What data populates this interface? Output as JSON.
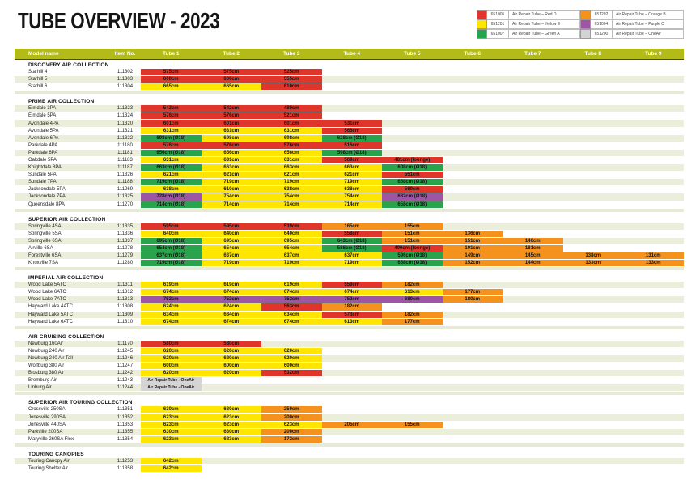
{
  "title": "TUBE OVERVIEW - 2023",
  "colors": {
    "R": "#e0352a",
    "Y": "#ffe600",
    "G": "#2aa44c",
    "O": "#f5921e",
    "P": "#9e55a4",
    "N": "#d4d4d4",
    "header": "#b3bb1a",
    "row_beige": "#ebeeda"
  },
  "legend": {
    "items": [
      {
        "code": "651005",
        "label": "Air Repair Tube – Red D",
        "color_key": "R"
      },
      {
        "code": "651201",
        "label": "Air Repair Tube – Yellow E",
        "color_key": "Y"
      },
      {
        "code": "651007",
        "label": "Air Repair Tube – Green A",
        "color_key": "G"
      },
      {
        "code": "651202",
        "label": "Air Repair Tube – Orange B",
        "color_key": "O"
      },
      {
        "code": "651004",
        "label": "Air Repair Tube – Purple C",
        "color_key": "P"
      },
      {
        "code": "651200",
        "label": "Air Repair Tube – OneAir",
        "color_key": "N"
      }
    ]
  },
  "table": {
    "columns": [
      "Model name",
      "Item No.",
      "Tube 1",
      "Tube 2",
      "Tube 3",
      "Tube 4",
      "Tube 5",
      "Tube 6",
      "Tube 7",
      "Tube 8",
      "Tube 9"
    ],
    "sections": [
      {
        "name": "DISCOVERY AIR COLLECTION",
        "first_stripe": "white",
        "rows": [
          {
            "model": "Starhill 4",
            "item": "111302",
            "tubes": [
              "575cm|R",
              "575cm|R",
              "525cm|R",
              "",
              "",
              "",
              "",
              "",
              ""
            ]
          },
          {
            "model": "Starhill 5",
            "item": "111303",
            "tubes": [
              "600cm|R",
              "600cm|R",
              "555cm|R",
              "",
              "",
              "",
              "",
              "",
              ""
            ]
          },
          {
            "model": "Starhill 6",
            "item": "111304",
            "tubes": [
              "665cm|Y",
              "665cm|Y",
              "610cm|R",
              "",
              "",
              "",
              "",
              "",
              ""
            ]
          }
        ]
      },
      {
        "name": "PRIME AIR COLLECTION",
        "first_stripe": "beige",
        "rows": [
          {
            "model": "Elmdale 3PA",
            "item": "111323",
            "tubes": [
              "542cm|R",
              "542cm|R",
              "489cm|R",
              "",
              "",
              "",
              "",
              "",
              ""
            ]
          },
          {
            "model": "Elmdale 5PA",
            "item": "111324",
            "tubes": [
              "576cm|R",
              "576cm|R",
              "521cm|R",
              "",
              "",
              "",
              "",
              "",
              ""
            ]
          },
          {
            "model": "Avondale 4PA",
            "item": "111320",
            "tubes": [
              "601cm|R",
              "601cm|R",
              "601cm|R",
              "531cm|R",
              "",
              "",
              "",
              "",
              ""
            ]
          },
          {
            "model": "Avondale 5PA",
            "item": "111321",
            "tubes": [
              "631cm|Y",
              "631cm|Y",
              "631cm|Y",
              "568cm|R",
              "",
              "",
              "",
              "",
              ""
            ]
          },
          {
            "model": "Avondale 6PA",
            "item": "111322",
            "tubes": [
              "698cm (Ø18)|G",
              "698cm|Y",
              "698cm|Y",
              "628cm (Ø18)|G",
              "",
              "",
              "",
              "",
              ""
            ]
          },
          {
            "model": "Parkdale 4PA",
            "item": "111180",
            "tubes": [
              "576cm|R",
              "576cm|R",
              "576cm|R",
              "516cm|R",
              "",
              "",
              "",
              "",
              ""
            ]
          },
          {
            "model": "Parkdale 6PA",
            "item": "111181",
            "tubes": [
              "656cm (Ø18)|G",
              "656cm|Y",
              "656cm|Y",
              "598cm (Ø18)|G",
              "",
              "",
              "",
              "",
              ""
            ]
          },
          {
            "model": "Oakdale 5PA",
            "item": "111183",
            "tubes": [
              "631cm|Y",
              "631cm|Y",
              "631cm|Y",
              "569cm|R",
              "481cm (lounge)|R",
              "",
              "",
              "",
              ""
            ]
          },
          {
            "model": "Knightdale 8PA",
            "item": "111187",
            "tubes": [
              "663cm (Ø18)|G",
              "663cm|Y",
              "663cm|Y",
              "663cm|Y",
              "608cm (Ø18)|G",
              "",
              "",
              "",
              ""
            ]
          },
          {
            "model": "Sundale 5PA",
            "item": "111326",
            "tubes": [
              "621cm|Y",
              "621cm|Y",
              "621cm|Y",
              "621cm|Y",
              "551cm|R",
              "",
              "",
              "",
              ""
            ]
          },
          {
            "model": "Sundale 7PA",
            "item": "111188",
            "tubes": [
              "719cm (Ø18)|G",
              "719cm|Y",
              "719cm|Y",
              "719cm|Y",
              "668cm (Ø18)|G",
              "",
              "",
              "",
              ""
            ]
          },
          {
            "model": "Jacksondale 5PA",
            "item": "111269",
            "tubes": [
              "638cm|Y",
              "610cm|Y",
              "638cm|Y",
              "638cm|Y",
              "569cm|R",
              "",
              "",
              "",
              ""
            ]
          },
          {
            "model": "Jacksondale 7PA",
            "item": "111325",
            "tubes": [
              "728cm (Ø18)|P",
              "754cm|Y",
              "754cm|Y",
              "754cm|Y",
              "682cm (Ø18)|P",
              "",
              "",
              "",
              ""
            ]
          },
          {
            "model": "Queensdale 8PA",
            "item": "111270",
            "tubes": [
              "714cm (Ø18)|G",
              "714cm|Y",
              "714cm|Y",
              "714cm|Y",
              "658cm (Ø18)|G",
              "",
              "",
              "",
              ""
            ]
          }
        ]
      },
      {
        "name": "SUPERIOR AIR COLLECTION",
        "first_stripe": "beige",
        "rows": [
          {
            "model": "Springville 4SA",
            "item": "111335",
            "tubes": [
              "595cm|R",
              "595cm|R",
              "539cm|R",
              "165cm|O",
              "155cm|O",
              "",
              "",
              "",
              ""
            ]
          },
          {
            "model": "Springville 5SA",
            "item": "111336",
            "tubes": [
              "640cm|Y",
              "640cm|Y",
              "640cm|Y",
              "558cm|R",
              "151cm|O",
              "136cm|O",
              "",
              "",
              ""
            ]
          },
          {
            "model": "Springville 6SA",
            "item": "111337",
            "tubes": [
              "695cm (Ø18)|G",
              "695cm|Y",
              "695cm|Y",
              "643cm (Ø18)|G",
              "151cm|O",
              "151cm|O",
              "146cm|O",
              "",
              ""
            ]
          },
          {
            "model": "Airville 6SA",
            "item": "111278",
            "tubes": [
              "654cm (Ø18)|G",
              "654cm|Y",
              "654cm|Y",
              "586cm (Ø18)|G",
              "490cm (lounge)|R",
              "191cm|O",
              "181cm|O",
              "",
              ""
            ]
          },
          {
            "model": "Forestville 6SA",
            "item": "111279",
            "tubes": [
              "637cm (Ø18)|G",
              "637cm|Y",
              "637cm|Y",
              "637cm|Y",
              "596cm (Ø18)|G",
              "149cm|O",
              "145cm|O",
              "138cm|O",
              "131cm|O"
            ]
          },
          {
            "model": "Knoxville 7SA",
            "item": "111280",
            "tubes": [
              "719cm (Ø18)|G",
              "719cm|Y",
              "719cm|Y",
              "719cm|Y",
              "668cm (Ø18)|G",
              "152cm|O",
              "144cm|O",
              "133cm|O",
              "133cm|O"
            ]
          }
        ]
      },
      {
        "name": "IMPERIAL AIR COLLECTION",
        "first_stripe": "beige",
        "rows": [
          {
            "model": "Wood Lake 5ATC",
            "item": "111311",
            "tubes": [
              "619cm|Y",
              "619cm|Y",
              "619cm|Y",
              "558cm|R",
              "182cm|O",
              "",
              "",
              "",
              ""
            ]
          },
          {
            "model": "Wood Lake 6ATC",
            "item": "111312",
            "tubes": [
              "674cm|Y",
              "674cm|Y",
              "674cm|Y",
              "674cm|Y",
              "613cm|Y",
              "177cm|O",
              "",
              "",
              ""
            ]
          },
          {
            "model": "Wood Lake 7ATC",
            "item": "111313",
            "tubes": [
              "752cm|P",
              "752cm|P",
              "752cm|P",
              "752cm|P",
              "680cm|P",
              "180cm|O",
              "",
              "",
              ""
            ]
          },
          {
            "model": "Hayward Lake 4ATC",
            "item": "111308",
            "tubes": [
              "624cm|Y",
              "624cm|Y",
              "563cm|R",
              "182cm|O",
              "",
              "",
              "",
              "",
              ""
            ]
          },
          {
            "model": "Hayward Lake 5ATC",
            "item": "111309",
            "tubes": [
              "634cm|Y",
              "634cm|Y",
              "634cm|Y",
              "573cm|R",
              "182cm|O",
              "",
              "",
              "",
              ""
            ]
          },
          {
            "model": "Hayward Lake 6ATC",
            "item": "111310",
            "tubes": [
              "674cm|Y",
              "674cm|Y",
              "674cm|Y",
              "613cm|Y",
              "177cm|O",
              "",
              "",
              "",
              ""
            ]
          }
        ]
      },
      {
        "name": "AIR CRUISING COLLECTION",
        "first_stripe": "beige",
        "rows": [
          {
            "model": "Newburg 160Air",
            "item": "111170",
            "tubes": [
              "580cm|R",
              "580cm|R",
              "",
              "",
              "",
              "",
              "",
              "",
              ""
            ]
          },
          {
            "model": "Newburg 240 Air",
            "item": "111245",
            "tubes": [
              "620cm|Y",
              "620cm|Y",
              "620cm|Y",
              "",
              "",
              "",
              "",
              "",
              ""
            ]
          },
          {
            "model": "Newburg 240 Air Tall",
            "item": "111246",
            "tubes": [
              "620cm|Y",
              "620cm|Y",
              "620cm|Y",
              "",
              "",
              "",
              "",
              "",
              ""
            ]
          },
          {
            "model": "Wolfburg 380 Air",
            "item": "111247",
            "tubes": [
              "600cm|Y",
              "600cm|Y",
              "600cm|Y",
              "",
              "",
              "",
              "",
              "",
              ""
            ]
          },
          {
            "model": "Blosburg 380 Air",
            "item": "111242",
            "tubes": [
              "620cm|Y",
              "620cm|Y",
              "532cm|R",
              "",
              "",
              "",
              "",
              "",
              ""
            ]
          },
          {
            "model": "Bremburg Air",
            "item": "111243",
            "tubes": [
              "Air Repair Tube - OneAir|N",
              "",
              "",
              "",
              "",
              "",
              "",
              "",
              ""
            ]
          },
          {
            "model": "Linburg Air",
            "item": "111244",
            "tubes": [
              "Air Repair Tube - OneAir|N",
              "",
              "",
              "",
              "",
              "",
              "",
              "",
              ""
            ]
          }
        ]
      },
      {
        "name": "SUPERIOR AIR TOURING COLLECTION",
        "first_stripe": "white",
        "rows": [
          {
            "model": "Crossville 250SA",
            "item": "111351",
            "tubes": [
              "630cm|Y",
              "630cm|Y",
              "250cm|O",
              "",
              "",
              "",
              "",
              "",
              ""
            ]
          },
          {
            "model": "Jonesville 290SA",
            "item": "111352",
            "tubes": [
              "623cm|Y",
              "623cm|Y",
              "200cm|O",
              "",
              "",
              "",
              "",
              "",
              ""
            ]
          },
          {
            "model": "Jonesville 440SA",
            "item": "111353",
            "tubes": [
              "623cm|Y",
              "623cm|Y",
              "623cm|Y",
              "205cm|O",
              "155cm|O",
              "",
              "",
              "",
              ""
            ]
          },
          {
            "model": "Parkville 200SA",
            "item": "111355",
            "tubes": [
              "630cm|Y",
              "630cm|Y",
              "200cm|O",
              "",
              "",
              "",
              "",
              "",
              ""
            ]
          },
          {
            "model": "Maryville 260SA Flex",
            "item": "111354",
            "tubes": [
              "623cm|Y",
              "623cm|Y",
              "172cm|O",
              "",
              "",
              "",
              "",
              "",
              ""
            ]
          }
        ]
      },
      {
        "name": "TOURING CANOPIES",
        "first_stripe": "beige",
        "rows": [
          {
            "model": "Touring Canopy Air",
            "item": "111253",
            "tubes": [
              "642cm|Y",
              "",
              "",
              "",
              "",
              "",
              "",
              "",
              ""
            ]
          },
          {
            "model": "Touring Shelter Air",
            "item": "111358",
            "tubes": [
              "642cm|Y",
              "",
              "",
              "",
              "",
              "",
              "",
              "",
              ""
            ]
          }
        ]
      }
    ]
  }
}
